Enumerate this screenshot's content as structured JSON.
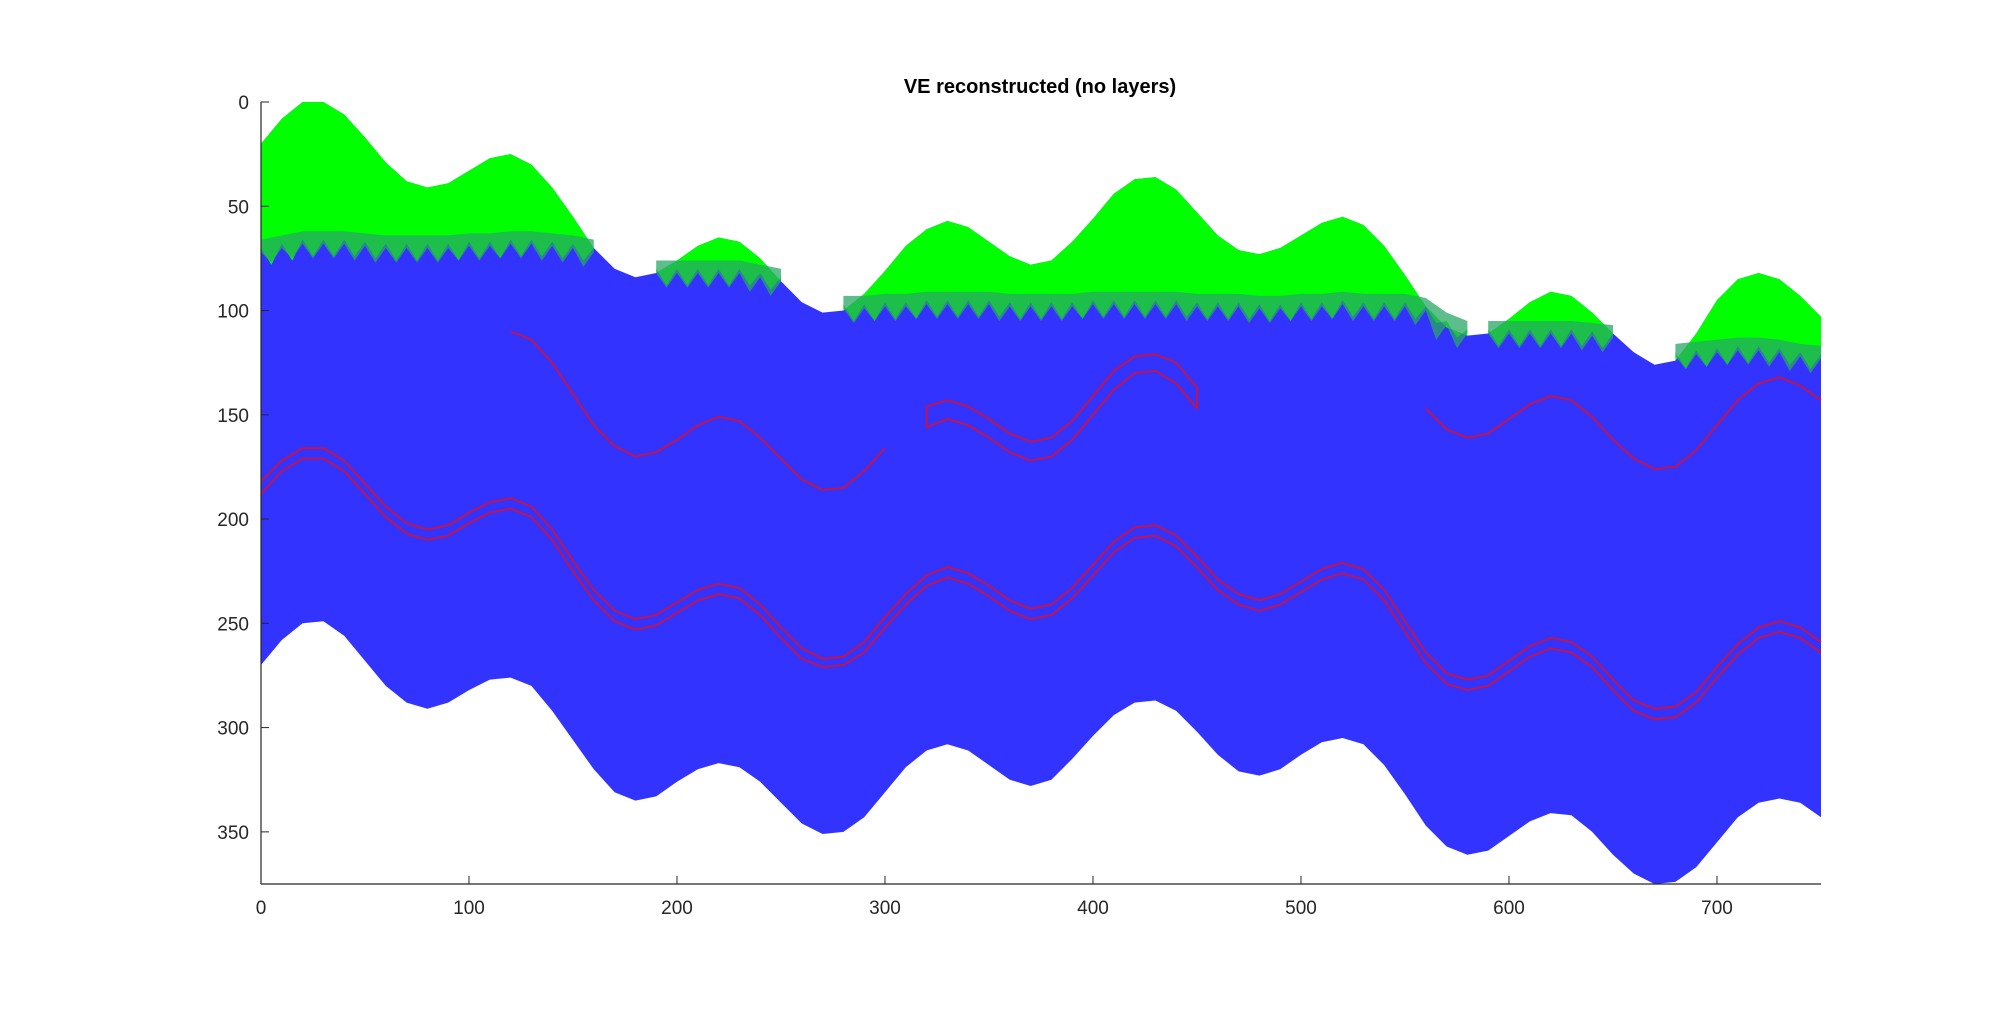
{
  "chart_data": {
    "type": "area",
    "title": "VE reconstructed (no layers)",
    "xlim": [
      0,
      750
    ],
    "ylim": [
      0,
      375
    ],
    "y_reversed": true,
    "grid": false,
    "xticks": [
      0,
      100,
      200,
      300,
      400,
      500,
      600,
      700
    ],
    "yticks": [
      0,
      50,
      100,
      150,
      200,
      250,
      300,
      350
    ],
    "colors": {
      "top_layer": "#00ff00",
      "transition": "#28a864",
      "body": "#3333ff",
      "lines": "#d0103a",
      "axes": "#262626"
    },
    "top_surface": {
      "x": [
        0,
        10,
        20,
        30,
        40,
        50,
        60,
        70,
        80,
        90,
        100,
        110,
        120,
        130,
        140,
        150,
        160,
        170,
        180,
        190,
        200,
        210,
        220,
        230,
        240,
        250,
        260,
        270,
        280,
        290,
        300,
        310,
        320,
        330,
        340,
        350,
        360,
        370,
        380,
        390,
        400,
        410,
        420,
        430,
        440,
        450,
        460,
        470,
        480,
        490,
        500,
        510,
        520,
        530,
        540,
        550,
        560,
        570,
        580,
        590,
        600,
        610,
        620,
        630,
        640,
        650,
        660,
        670,
        680,
        690,
        700,
        710,
        720,
        730,
        740,
        750
      ],
      "y": [
        20,
        8,
        0,
        0,
        6,
        17,
        29,
        38,
        41,
        39,
        33,
        27,
        25,
        30,
        41,
        55,
        70,
        80,
        84,
        82,
        76,
        69,
        65,
        67,
        75,
        86,
        96,
        101,
        100,
        92,
        81,
        69,
        61,
        57,
        60,
        67,
        74,
        78,
        76,
        67,
        56,
        44,
        37,
        36,
        42,
        53,
        64,
        71,
        73,
        70,
        64,
        58,
        55,
        59,
        69,
        83,
        98,
        108,
        112,
        111,
        104,
        96,
        91,
        93,
        101,
        111,
        120,
        126,
        124,
        111,
        95,
        85,
        82,
        85,
        93,
        103
      ]
    },
    "green_bottom": {
      "segments": [
        [
          0,
          160
        ],
        [
          190,
          250
        ],
        [
          280,
          580
        ],
        [
          590,
          650
        ],
        [
          680,
          750
        ]
      ],
      "x": [
        0,
        10,
        20,
        30,
        40,
        50,
        60,
        70,
        80,
        90,
        100,
        110,
        120,
        130,
        140,
        150,
        160,
        170,
        180,
        190,
        200,
        210,
        220,
        230,
        240,
        250,
        260,
        270,
        280,
        290,
        300,
        310,
        320,
        330,
        340,
        350,
        360,
        370,
        380,
        390,
        400,
        410,
        420,
        430,
        440,
        450,
        460,
        470,
        480,
        490,
        500,
        510,
        520,
        530,
        540,
        550,
        560,
        570,
        580,
        590,
        600,
        610,
        620,
        630,
        640,
        650,
        660,
        670,
        680,
        690,
        700,
        710,
        720,
        730,
        740,
        750
      ],
      "y": [
        70,
        68,
        66,
        66,
        66,
        67,
        68,
        68,
        68,
        68,
        67,
        67,
        66,
        66,
        67,
        68,
        70,
        77,
        82,
        80,
        80,
        80,
        80,
        80,
        82,
        84,
        92,
        97,
        97,
        97,
        96,
        96,
        95,
        95,
        95,
        95,
        96,
        96,
        96,
        96,
        95,
        95,
        95,
        95,
        95,
        96,
        96,
        96,
        97,
        97,
        96,
        96,
        95,
        96,
        96,
        96,
        98,
        105,
        109,
        109,
        109,
        109,
        109,
        109,
        110,
        111,
        117,
        121,
        120,
        119,
        118,
        117,
        117,
        118,
        120,
        121
      ]
    },
    "bottom_surface": {
      "x": [
        0,
        10,
        20,
        30,
        40,
        50,
        60,
        70,
        80,
        90,
        100,
        110,
        120,
        130,
        140,
        150,
        160,
        170,
        180,
        190,
        200,
        210,
        220,
        230,
        240,
        250,
        260,
        270,
        280,
        290,
        300,
        310,
        320,
        330,
        340,
        350,
        360,
        370,
        380,
        390,
        400,
        410,
        420,
        430,
        440,
        450,
        460,
        470,
        480,
        490,
        500,
        510,
        520,
        530,
        540,
        550,
        560,
        570,
        580,
        590,
        600,
        610,
        620,
        630,
        640,
        650,
        660,
        670,
        680,
        690,
        700,
        710,
        720,
        730,
        740,
        750
      ],
      "y": [
        270,
        258,
        250,
        249,
        256,
        268,
        280,
        288,
        291,
        288,
        282,
        277,
        276,
        280,
        292,
        306,
        320,
        331,
        335,
        333,
        326,
        320,
        317,
        319,
        326,
        336,
        346,
        351,
        350,
        343,
        331,
        319,
        311,
        308,
        311,
        318,
        325,
        328,
        325,
        315,
        304,
        294,
        288,
        287,
        292,
        302,
        313,
        321,
        323,
        320,
        313,
        307,
        305,
        308,
        318,
        332,
        347,
        357,
        361,
        359,
        352,
        345,
        341,
        342,
        350,
        361,
        370,
        375,
        374,
        367,
        355,
        343,
        336,
        334,
        336,
        343
      ]
    },
    "red_lines": [
      {
        "x": [
          0,
          10,
          20,
          30,
          40,
          50,
          60,
          70,
          80,
          90,
          100,
          110,
          120,
          130,
          140,
          150,
          160,
          170,
          180,
          190,
          200,
          210,
          220,
          230,
          240,
          250,
          260,
          270,
          280,
          290,
          300,
          310,
          320,
          330,
          340,
          350,
          360,
          370,
          380,
          390,
          400,
          410,
          420,
          430,
          440,
          450,
          460,
          470,
          480,
          490,
          500,
          510,
          520,
          530,
          540,
          550,
          560,
          570,
          580,
          590,
          600,
          610,
          620,
          630,
          640,
          650,
          660,
          670,
          680,
          690,
          700,
          710,
          720,
          730,
          740,
          750
        ],
        "y": [
          182,
          172,
          166,
          166,
          172,
          183,
          194,
          202,
          205,
          203,
          197,
          192,
          190,
          194,
          205,
          220,
          234,
          244,
          248,
          246,
          240,
          234,
          231,
          233,
          241,
          252,
          262,
          267,
          266,
          259,
          247,
          236,
          227,
          223,
          226,
          232,
          239,
          243,
          241,
          233,
          222,
          211,
          204,
          203,
          208,
          218,
          229,
          236,
          239,
          236,
          230,
          224,
          221,
          224,
          234,
          249,
          264,
          274,
          277,
          275,
          268,
          261,
          257,
          259,
          266,
          277,
          287,
          291,
          290,
          283,
          271,
          260,
          252,
          249,
          252,
          259
        ]
      },
      {
        "x": [
          0,
          10,
          20,
          30,
          40,
          50,
          60,
          70,
          80,
          90,
          100,
          110,
          120,
          130,
          140,
          150,
          160,
          170,
          180,
          190,
          200,
          210,
          220,
          230,
          240,
          250,
          260,
          270,
          280,
          290,
          300,
          310,
          320,
          330,
          340,
          350,
          360,
          370,
          380,
          390,
          400,
          410,
          420,
          430,
          440,
          450,
          460,
          470,
          480,
          490,
          500,
          510,
          520,
          530,
          540,
          550,
          560,
          570,
          580,
          590,
          600,
          610,
          620,
          630,
          640,
          650,
          660,
          670,
          680,
          690,
          700,
          710,
          720,
          730,
          740,
          750
        ],
        "y": [
          188,
          177,
          171,
          171,
          177,
          188,
          199,
          207,
          210,
          208,
          202,
          197,
          195,
          199,
          210,
          225,
          239,
          249,
          253,
          251,
          245,
          239,
          236,
          238,
          246,
          257,
          267,
          271,
          270,
          264,
          252,
          241,
          232,
          228,
          231,
          237,
          244,
          248,
          246,
          238,
          227,
          216,
          209,
          208,
          213,
          223,
          234,
          241,
          244,
          241,
          235,
          229,
          226,
          229,
          239,
          254,
          269,
          279,
          282,
          280,
          273,
          266,
          262,
          264,
          271,
          282,
          292,
          296,
          295,
          288,
          276,
          265,
          257,
          254,
          257,
          264
        ]
      },
      {
        "x": [
          120,
          130,
          140,
          150,
          160,
          170,
          180,
          190,
          200,
          210,
          220,
          230,
          240,
          250,
          260,
          270,
          280,
          290,
          300
        ],
        "y": [
          110,
          114,
          125,
          140,
          155,
          165,
          170,
          168,
          162,
          155,
          151,
          153,
          161,
          171,
          181,
          186,
          185,
          177,
          166
        ]
      },
      {
        "x": [
          320,
          320,
          330,
          340,
          350,
          360,
          370,
          380,
          390,
          400,
          410,
          420,
          430,
          440,
          450,
          450,
          440,
          430,
          420,
          410,
          400,
          390,
          380,
          370,
          360,
          350,
          340,
          330,
          320
        ],
        "y": [
          146,
          156,
          152,
          155,
          161,
          168,
          172,
          170,
          162,
          150,
          138,
          130,
          129,
          135,
          147,
          137,
          125,
          121,
          122,
          129,
          141,
          153,
          161,
          163,
          159,
          152,
          146,
          143,
          146
        ]
      },
      {
        "x": [
          560,
          570,
          580,
          590,
          600,
          610,
          620,
          630,
          640,
          650,
          660,
          670,
          680,
          690,
          700,
          710,
          720,
          730,
          740,
          750
        ],
        "y": [
          147,
          157,
          161,
          159,
          152,
          145,
          141,
          143,
          151,
          162,
          171,
          176,
          175,
          167,
          155,
          143,
          135,
          132,
          136,
          143
        ]
      }
    ]
  }
}
